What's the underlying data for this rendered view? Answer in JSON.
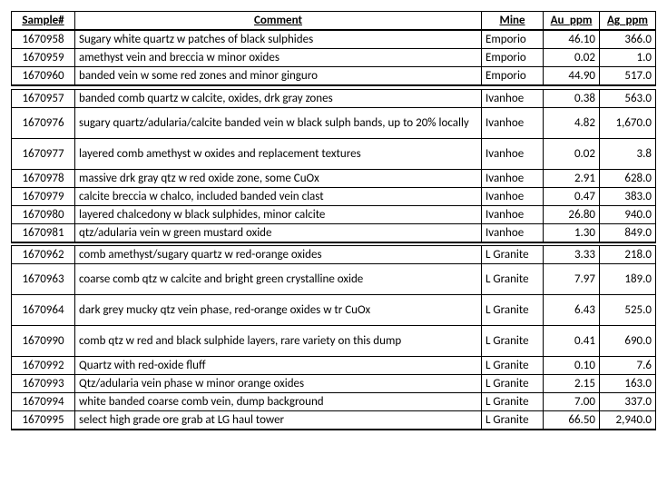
{
  "headers": {
    "sample": "Sample#",
    "comment": "Comment",
    "mine": "Mine",
    "au": "Au_ppm",
    "ag": "Ag_ppm"
  },
  "groups": [
    {
      "rows": [
        {
          "sample": "1670958",
          "comment": "Sugary white quartz w patches of black sulphides",
          "mine": "Emporio",
          "au": "46.10",
          "ag": "366.0"
        },
        {
          "sample": "1670959",
          "comment": "amethyst vein and breccia w minor oxides",
          "mine": "Emporio",
          "au": "0.02",
          "ag": "1.0"
        },
        {
          "sample": "1670960",
          "comment": "banded vein w some red zones and minor ginguro",
          "mine": "Emporio",
          "au": "44.90",
          "ag": "517.0"
        }
      ]
    },
    {
      "rows": [
        {
          "sample": "1670957",
          "comment": "banded comb quartz w calcite, oxides, drk gray zones",
          "mine": "Ivanhoe",
          "au": "0.38",
          "ag": "563.0"
        },
        {
          "sample": "1670976",
          "comment": "sugary quartz/adularia/calcite banded  vein w black sulph bands, up to 20% locally",
          "mine": "Ivanhoe",
          "au": "4.82",
          "ag": "1,670.0",
          "tall": true
        },
        {
          "sample": "1670977",
          "comment": "layered comb amethyst w oxides and replacement textures",
          "mine": "Ivanhoe",
          "au": "0.02",
          "ag": "3.8",
          "tall": true
        },
        {
          "sample": "1670978",
          "comment": "massive drk gray qtz w red oxide zone, some CuOx",
          "mine": "Ivanhoe",
          "au": "2.91",
          "ag": "628.0"
        },
        {
          "sample": "1670979",
          "comment": "calcite breccia w chalco, included banded vein clast",
          "mine": "Ivanhoe",
          "au": "0.47",
          "ag": "383.0"
        },
        {
          "sample": "1670980",
          "comment": "layered chalcedony w black sulphides, minor calcite",
          "mine": "Ivanhoe",
          "au": "26.80",
          "ag": "940.0"
        },
        {
          "sample": "1670981",
          "comment": "qtz/adularia vein w green mustard oxide",
          "mine": "Ivanhoe",
          "au": "1.30",
          "ag": "849.0"
        }
      ]
    },
    {
      "rows": [
        {
          "sample": "1670962",
          "comment": "comb amethyst/sugary quartz w red-orange oxides",
          "mine": "L Granite",
          "au": "3.33",
          "ag": "218.0"
        },
        {
          "sample": "1670963",
          "comment": "coarse comb qtz w calcite and bright green crystalline oxide",
          "mine": "L Granite",
          "au": "7.97",
          "ag": "189.0",
          "tall": true
        },
        {
          "sample": "1670964",
          "comment": "dark grey mucky qtz vein phase, red-orange oxides w tr CuOx",
          "mine": "L Granite",
          "au": "6.43",
          "ag": "525.0",
          "tall": true
        },
        {
          "sample": "1670990",
          "comment": "comb qtz w red and black sulphide layers, rare variety on this dump",
          "mine": "L Granite",
          "au": "0.41",
          "ag": "690.0",
          "tall": true
        },
        {
          "sample": "1670992",
          "comment": "Quartz with red-oxide fluff",
          "mine": "L Granite",
          "au": "0.10",
          "ag": "7.6"
        },
        {
          "sample": "1670993",
          "comment": "Qtz/adularia vein phase w minor orange oxides",
          "mine": "L Granite",
          "au": "2.15",
          "ag": "163.0"
        },
        {
          "sample": "1670994",
          "comment": "white banded coarse comb vein, dump background",
          "mine": "L Granite",
          "au": "7.00",
          "ag": "337.0"
        },
        {
          "sample": "1670995",
          "comment": "select high grade ore grab at LG haul tower",
          "mine": "L Granite",
          "au": "66.50",
          "ag": "2,940.0"
        }
      ]
    }
  ]
}
